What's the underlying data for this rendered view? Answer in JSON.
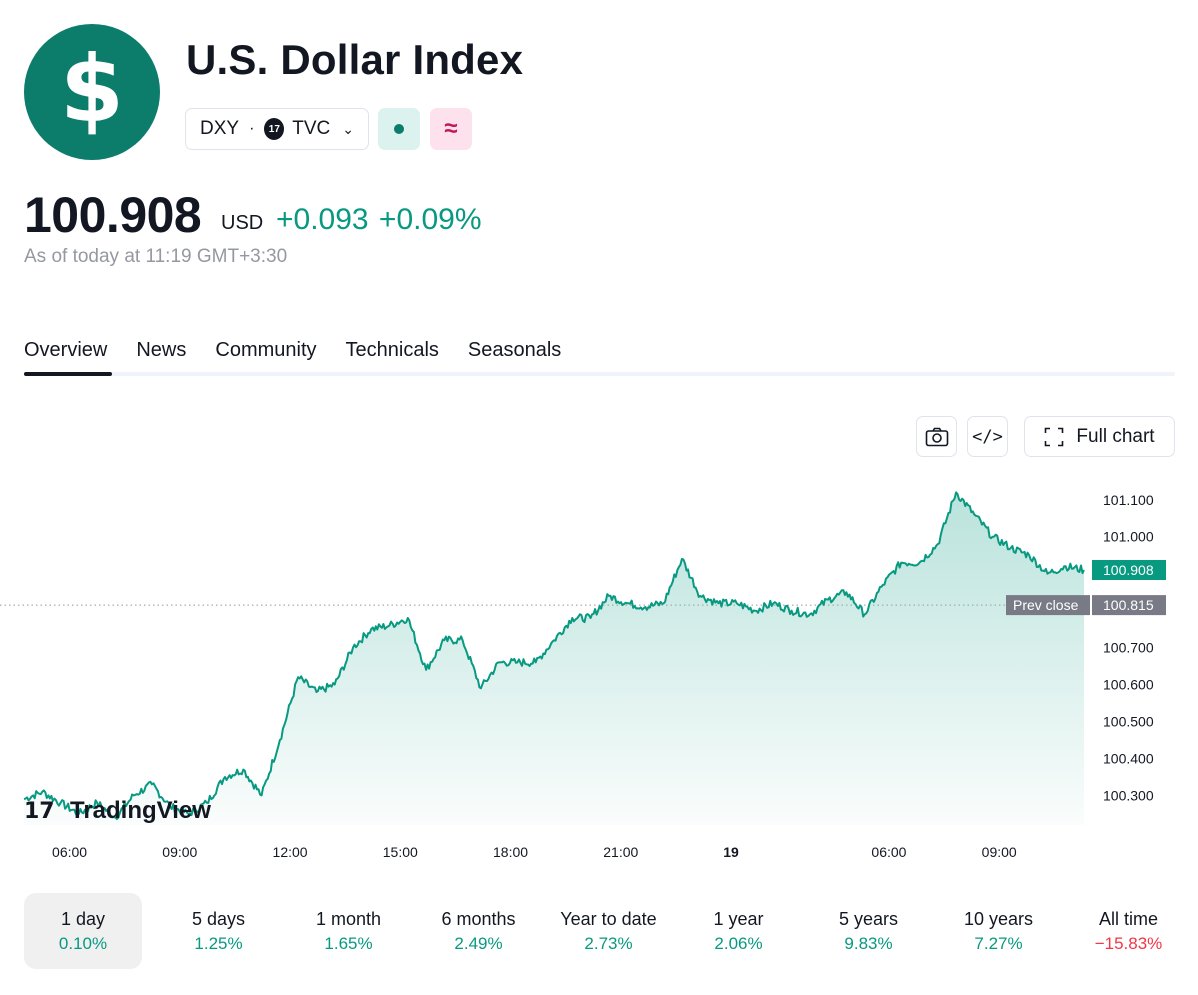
{
  "header": {
    "logo_glyph": "$",
    "title": "U.S. Dollar Index",
    "symbol": "DXY",
    "exchange": "TVC",
    "exchange_logo": "17",
    "approx_glyph": "≈"
  },
  "quote": {
    "price": "100.908",
    "currency": "USD",
    "change": "+0.093 +0.09%",
    "as_of": "As of today at 11:19 GMT+3:30"
  },
  "tabs": [
    "Overview",
    "News",
    "Community",
    "Technicals",
    "Seasonals"
  ],
  "toolbar": {
    "camera_icon": "camera-icon",
    "embed_icon": "</>",
    "full_chart_label": "Full chart"
  },
  "colors": {
    "accent": "#0b7d6a",
    "line": "#089981",
    "positive": "#089981",
    "negative": "#f23645"
  },
  "chart_data": {
    "type": "area",
    "title": "",
    "xlabel": "",
    "ylabel": "",
    "ylim": [
      100.22,
      101.14
    ],
    "x_ticks": [
      "06:00",
      "09:00",
      "12:00",
      "15:00",
      "18:00",
      "21:00",
      "19",
      "06:00",
      "09:00"
    ],
    "y_ticks": [
      "101.100",
      "101.000",
      "100.700",
      "100.600",
      "100.500",
      "100.400",
      "100.300"
    ],
    "prev_close_label": "Prev close",
    "prev_close": "100.815",
    "last_price_label": "100.908",
    "watermark": "TradingView",
    "watermark_glyph": "17",
    "series": [
      {
        "values": [
          100.29,
          100.31,
          100.28,
          100.25,
          100.28,
          100.24,
          100.3,
          100.33,
          100.27,
          100.25,
          100.28,
          100.35,
          100.37,
          100.3,
          100.45,
          100.62,
          100.58,
          100.6,
          100.7,
          100.75,
          100.76,
          100.78,
          100.64,
          100.72,
          100.72,
          100.59,
          100.66,
          100.66,
          100.66,
          100.72,
          100.78,
          100.78,
          100.84,
          100.82,
          100.81,
          100.82,
          100.94,
          100.84,
          100.82,
          100.82,
          100.8,
          100.82,
          100.8,
          100.79,
          100.83,
          100.85,
          100.79,
          100.87,
          100.93,
          100.93,
          100.98,
          101.12,
          101.06,
          101.0,
          100.97,
          100.95,
          100.9,
          100.92,
          100.91
        ]
      }
    ]
  },
  "periods": [
    {
      "label": "1 day",
      "value": "0.10%",
      "negative": false,
      "active": true
    },
    {
      "label": "5 days",
      "value": "1.25%",
      "negative": false,
      "active": false
    },
    {
      "label": "1 month",
      "value": "1.65%",
      "negative": false,
      "active": false
    },
    {
      "label": "6 months",
      "value": "2.49%",
      "negative": false,
      "active": false
    },
    {
      "label": "Year to date",
      "value": "2.73%",
      "negative": false,
      "active": false
    },
    {
      "label": "1 year",
      "value": "2.06%",
      "negative": false,
      "active": false
    },
    {
      "label": "5 years",
      "value": "9.83%",
      "negative": false,
      "active": false
    },
    {
      "label": "10 years",
      "value": "7.27%",
      "negative": false,
      "active": false
    },
    {
      "label": "All time",
      "value": "−15.83%",
      "negative": true,
      "active": false
    }
  ]
}
